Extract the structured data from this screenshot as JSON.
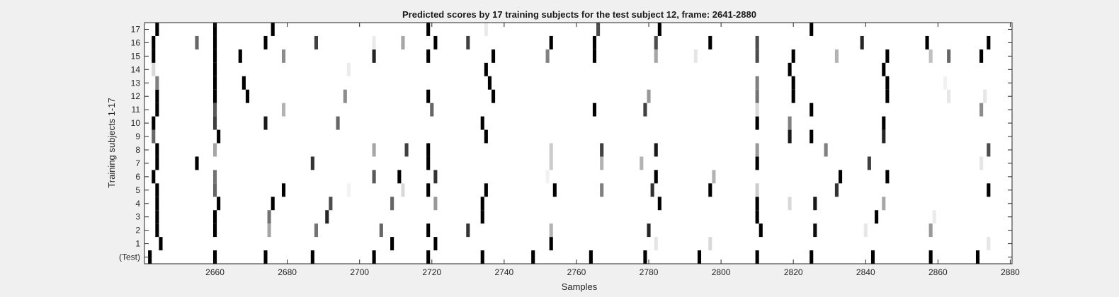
{
  "chart_data": {
    "type": "heatmap",
    "title": "Predicted scores by 17 training subjects for the test subject 12, frame: 2641-2880",
    "xlabel": "Samples",
    "ylabel": "Training subjects 1-17",
    "xlim": [
      2641,
      2880
    ],
    "x_ticks": [
      "2660",
      "2680",
      "2700",
      "2720",
      "2740",
      "2760",
      "2780",
      "2800",
      "2820",
      "2840",
      "2860",
      "2880"
    ],
    "y_tick_labels": [
      "(Test)",
      "1",
      "2",
      "3",
      "4",
      "5",
      "6",
      "7",
      "8",
      "9",
      "10",
      "11",
      "12",
      "13",
      "14",
      "15",
      "16",
      "17"
    ],
    "colormap": "gray (0 = white, 1 = black)",
    "rows": [
      {
        "label": "(Test)",
        "marks": [
          [
            2642,
            1
          ],
          [
            2660,
            1
          ],
          [
            2674,
            1
          ],
          [
            2687,
            1
          ],
          [
            2704,
            1
          ],
          [
            2719,
            1
          ],
          [
            2734,
            1
          ],
          [
            2748,
            1
          ],
          [
            2764,
            1
          ],
          [
            2779,
            1
          ],
          [
            2794,
            1
          ],
          [
            2810,
            1
          ],
          [
            2825,
            1
          ],
          [
            2842,
            1
          ],
          [
            2858,
            1
          ],
          [
            2871,
            1
          ]
        ]
      },
      {
        "label": "1",
        "marks": [
          [
            2645,
            1
          ],
          [
            2709,
            1
          ],
          [
            2721,
            1
          ],
          [
            2753,
            1
          ],
          [
            2782,
            0.1
          ],
          [
            2797,
            0.15
          ],
          [
            2874,
            0.1
          ]
        ]
      },
      {
        "label": "2",
        "marks": [
          [
            2644,
            1
          ],
          [
            2660,
            1
          ],
          [
            2675,
            0.35
          ],
          [
            2688,
            0.55
          ],
          [
            2706,
            0.6
          ],
          [
            2719,
            1
          ],
          [
            2730,
            0.8
          ],
          [
            2753,
            0.3
          ],
          [
            2780,
            0.85
          ],
          [
            2811,
            1
          ],
          [
            2826,
            0.95
          ],
          [
            2840,
            0.1
          ],
          [
            2858,
            0.4
          ]
        ]
      },
      {
        "label": "3",
        "marks": [
          [
            2644,
            1
          ],
          [
            2660,
            1
          ],
          [
            2675,
            0.55
          ],
          [
            2691,
            0.85
          ],
          [
            2734,
            1
          ],
          [
            2810,
            1
          ],
          [
            2843,
            1
          ],
          [
            2859,
            0.08
          ]
        ]
      },
      {
        "label": "4",
        "marks": [
          [
            2644,
            1
          ],
          [
            2661,
            1
          ],
          [
            2676,
            1
          ],
          [
            2692,
            0.7
          ],
          [
            2709,
            0.6
          ],
          [
            2721,
            0.4
          ],
          [
            2734,
            1
          ],
          [
            2783,
            1
          ],
          [
            2810,
            1
          ],
          [
            2819,
            0.15
          ],
          [
            2826,
            0.9
          ],
          [
            2845,
            0.35
          ]
        ]
      },
      {
        "label": "5",
        "marks": [
          [
            2644,
            1
          ],
          [
            2660,
            0.6
          ],
          [
            2679,
            1
          ],
          [
            2697,
            0.05
          ],
          [
            2712,
            0.15
          ],
          [
            2719,
            1
          ],
          [
            2735,
            1
          ],
          [
            2754,
            1
          ],
          [
            2767,
            0.5
          ],
          [
            2781,
            0.8
          ],
          [
            2797,
            1
          ],
          [
            2810,
            0.2
          ],
          [
            2832,
            0.8
          ],
          [
            2874,
            1
          ]
        ]
      },
      {
        "label": "6",
        "marks": [
          [
            2643,
            1
          ],
          [
            2660,
            0.55
          ],
          [
            2704,
            0.65
          ],
          [
            2711,
            1
          ],
          [
            2721,
            0.8
          ],
          [
            2752,
            0.05
          ],
          [
            2782,
            1
          ],
          [
            2798,
            0.3
          ],
          [
            2833,
            1
          ],
          [
            2846,
            1
          ]
        ]
      },
      {
        "label": "7",
        "marks": [
          [
            2644,
            1
          ],
          [
            2655,
            1
          ],
          [
            2687,
            0.8
          ],
          [
            2719,
            1
          ],
          [
            2753,
            0.2
          ],
          [
            2767,
            0.3
          ],
          [
            2778,
            0.3
          ],
          [
            2810,
            1
          ],
          [
            2841,
            0.75
          ],
          [
            2872,
            0.1
          ]
        ]
      },
      {
        "label": "8",
        "marks": [
          [
            2644,
            1
          ],
          [
            2660,
            0.35
          ],
          [
            2704,
            0.35
          ],
          [
            2713,
            0.75
          ],
          [
            2719,
            1
          ],
          [
            2753,
            0.2
          ],
          [
            2767,
            0.75
          ],
          [
            2782,
            0.9
          ],
          [
            2810,
            0.4
          ],
          [
            2829,
            0.5
          ],
          [
            2874,
            0.7
          ]
        ]
      },
      {
        "label": "9",
        "marks": [
          [
            2643,
            0.6
          ],
          [
            2661,
            1
          ],
          [
            2735,
            1
          ],
          [
            2819,
            0.9
          ],
          [
            2825,
            1
          ],
          [
            2845,
            0.85
          ]
        ]
      },
      {
        "label": "10",
        "marks": [
          [
            2643,
            1
          ],
          [
            2660,
            0.75
          ],
          [
            2674,
            0.9
          ],
          [
            2694,
            0.6
          ],
          [
            2734,
            1
          ],
          [
            2810,
            1
          ],
          [
            2819,
            0.5
          ],
          [
            2845,
            1
          ]
        ]
      },
      {
        "label": "11",
        "marks": [
          [
            2644,
            1
          ],
          [
            2660,
            0.65
          ],
          [
            2679,
            0.3
          ],
          [
            2720,
            0.6
          ],
          [
            2765,
            1
          ],
          [
            2779,
            0.75
          ],
          [
            2810,
            0.15
          ],
          [
            2825,
            1
          ],
          [
            2872,
            0.45
          ]
        ]
      },
      {
        "label": "12",
        "marks": [
          [
            2644,
            1
          ],
          [
            2660,
            1
          ],
          [
            2669,
            1
          ],
          [
            2696,
            0.45
          ],
          [
            2719,
            1
          ],
          [
            2737,
            1
          ],
          [
            2780,
            0.4
          ],
          [
            2810,
            0.55
          ],
          [
            2820,
            1
          ],
          [
            2846,
            1
          ],
          [
            2863,
            0.1
          ],
          [
            2873,
            0.1
          ]
        ]
      },
      {
        "label": "13",
        "marks": [
          [
            2644,
            0.5
          ],
          [
            2660,
            1
          ],
          [
            2668,
            1
          ],
          [
            2736,
            1
          ],
          [
            2810,
            0.5
          ],
          [
            2820,
            1
          ],
          [
            2846,
            1
          ],
          [
            2862,
            0.05
          ]
        ]
      },
      {
        "label": "14",
        "marks": [
          [
            2643,
            0.15
          ],
          [
            2660,
            1
          ],
          [
            2697,
            0.08
          ],
          [
            2735,
            1
          ],
          [
            2819,
            1
          ],
          [
            2845,
            1
          ]
        ]
      },
      {
        "label": "15",
        "marks": [
          [
            2643,
            1
          ],
          [
            2660,
            1
          ],
          [
            2667,
            1
          ],
          [
            2679,
            0.45
          ],
          [
            2704,
            0.85
          ],
          [
            2719,
            1
          ],
          [
            2737,
            1
          ],
          [
            2752,
            0.5
          ],
          [
            2765,
            1
          ],
          [
            2782,
            0.35
          ],
          [
            2793,
            0.1
          ],
          [
            2810,
            0.7
          ],
          [
            2820,
            1
          ],
          [
            2832,
            0.3
          ],
          [
            2846,
            1
          ],
          [
            2858,
            0.25
          ],
          [
            2863,
            0.6
          ],
          [
            2872,
            1
          ]
        ]
      },
      {
        "label": "16",
        "marks": [
          [
            2643,
            1
          ],
          [
            2655,
            0.6
          ],
          [
            2660,
            1
          ],
          [
            2674,
            1
          ],
          [
            2688,
            0.75
          ],
          [
            2704,
            0.08
          ],
          [
            2712,
            0.35
          ],
          [
            2721,
            1
          ],
          [
            2730,
            0.75
          ],
          [
            2753,
            1
          ],
          [
            2765,
            1
          ],
          [
            2782,
            0.7
          ],
          [
            2797,
            1
          ],
          [
            2810,
            0.7
          ],
          [
            2839,
            0.85
          ],
          [
            2857,
            1
          ],
          [
            2874,
            1
          ]
        ]
      },
      {
        "label": "17",
        "marks": [
          [
            2644,
            1
          ],
          [
            2660,
            1
          ],
          [
            2676,
            1
          ],
          [
            2719,
            1
          ],
          [
            2735,
            0.08
          ],
          [
            2766,
            0.7
          ],
          [
            2783,
            1
          ],
          [
            2825,
            1
          ]
        ]
      }
    ],
    "grid": false,
    "legend": "none"
  }
}
